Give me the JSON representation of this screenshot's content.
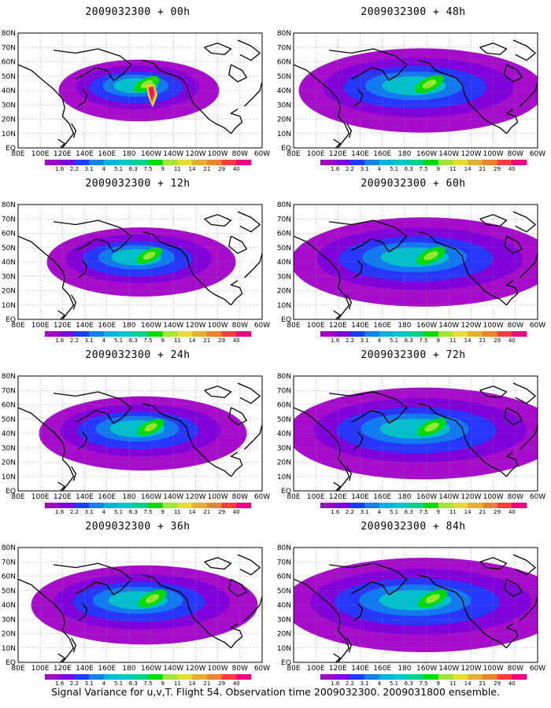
{
  "caption": "Signal Variance for u,v,T. Flight 54. Observation time 2009032300. 2009031800 ensemble.",
  "lat_labels": [
    "80N",
    "70N",
    "60N",
    "50N",
    "40N",
    "30N",
    "20N",
    "10N",
    "EQ"
  ],
  "lon_labels": [
    "80E",
    "100E",
    "120E",
    "140E",
    "160E",
    "180",
    "160W",
    "140W",
    "120W",
    "100W",
    "80W",
    "60W"
  ],
  "colorbar": {
    "labels": [
      "1.6",
      "2.2",
      "3.1",
      "4",
      "5.1",
      "6.3",
      "7.5",
      "9",
      "11",
      "14",
      "21",
      "29",
      "40"
    ],
    "colors": [
      "#a000c8",
      "#7d00dc",
      "#1e3cff",
      "#0f82f0",
      "#00b4dc",
      "#00c8c8",
      "#00d28c",
      "#00dc00",
      "#a0e632",
      "#e6dc32",
      "#e6af2d",
      "#f08228",
      "#fa3c3c",
      "#f00082"
    ]
  },
  "panels": [
    {
      "id": "p00",
      "title": "2009032300 + 00h",
      "intensity": 0.55,
      "spread": 0.35,
      "hotspot": true
    },
    {
      "id": "p48",
      "title": "2009032300 + 48h",
      "intensity": 0.72,
      "spread": 0.8,
      "hotspot": false
    },
    {
      "id": "p12",
      "title": "2009032300 + 12h",
      "intensity": 0.55,
      "spread": 0.5,
      "hotspot": false
    },
    {
      "id": "p60",
      "title": "2009032300 + 60h",
      "intensity": 0.72,
      "spread": 0.9,
      "hotspot": false
    },
    {
      "id": "p24",
      "title": "2009032300 + 24h",
      "intensity": 0.6,
      "spread": 0.6,
      "hotspot": false
    },
    {
      "id": "p72",
      "title": "2009032300 + 72h",
      "intensity": 0.72,
      "spread": 0.95,
      "hotspot": false
    },
    {
      "id": "p36",
      "title": "2009032300 + 36h",
      "intensity": 0.68,
      "spread": 0.7,
      "hotspot": false
    },
    {
      "id": "p84",
      "title": "2009032300 + 84h",
      "intensity": 0.72,
      "spread": 1.0,
      "hotspot": false
    }
  ]
}
